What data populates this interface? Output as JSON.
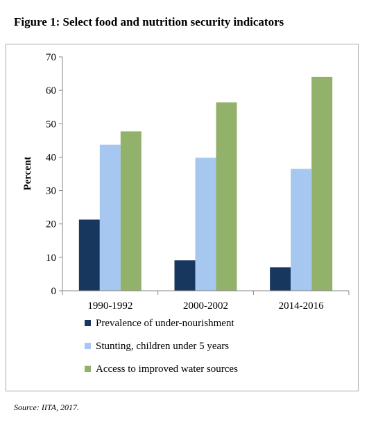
{
  "figure": {
    "title": "Figure 1: Select food and nutrition security indicators",
    "source": "Source: IITA, 2017."
  },
  "chart_data": {
    "type": "bar",
    "title": "",
    "xlabel": "",
    "ylabel": "Percent",
    "ylim": [
      0,
      70
    ],
    "yticks": [
      0,
      10,
      20,
      30,
      40,
      50,
      60,
      70
    ],
    "grid": false,
    "legend_position": "bottom",
    "categories": [
      "1990-1992",
      "2000-2002",
      "2014-2016"
    ],
    "series": [
      {
        "name": "Prevalence of under-nourishment",
        "values": [
          21.3,
          9.1,
          7.0
        ],
        "color": "#17375e"
      },
      {
        "name": "Stunting, children under 5 years",
        "values": [
          43.7,
          39.8,
          36.5
        ],
        "color": "#a6c8f0"
      },
      {
        "name": "Access to improved water sources",
        "values": [
          47.7,
          56.4,
          64.0
        ],
        "color": "#92b26b"
      }
    ]
  }
}
